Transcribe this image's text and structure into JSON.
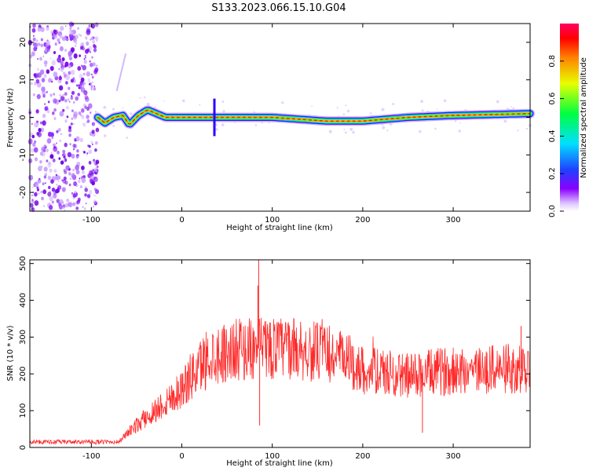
{
  "title": "S133.2023.066.15.10.G04",
  "colors": {
    "trace": "#ff2a2a",
    "line_center": "#ff1a1a"
  },
  "chart_data": [
    {
      "type": "heatmap",
      "xlabel": "Height of straight line (km)",
      "ylabel": "Frequency (Hz)",
      "xlim": [
        -168,
        385
      ],
      "ylim": [
        -25,
        25
      ],
      "xticks": [
        -100,
        0,
        100,
        200,
        300
      ],
      "yticks": [
        -20,
        -10,
        0,
        10,
        20
      ],
      "colorbar": {
        "label": "Normalized spectral amplitude",
        "range": [
          0.0,
          1.0
        ],
        "ticks": [
          "0.0",
          "0.2",
          "0.4",
          "0.6",
          "0.8"
        ],
        "colormap": "rainbow"
      },
      "noise_region_xmax": -93,
      "signal_center_track": [
        [
          -93,
          0
        ],
        [
          -85,
          -1.5
        ],
        [
          -75,
          0
        ],
        [
          -65,
          0.5
        ],
        [
          -58,
          -2
        ],
        [
          -48,
          0.5
        ],
        [
          -38,
          2
        ],
        [
          -28,
          1
        ],
        [
          -18,
          0
        ],
        [
          0,
          0
        ],
        [
          35,
          0
        ],
        [
          100,
          0
        ],
        [
          160,
          -1
        ],
        [
          200,
          -1
        ],
        [
          250,
          0
        ],
        [
          300,
          0.5
        ],
        [
          385,
          1
        ]
      ]
    },
    {
      "type": "line",
      "xlabel": "Height of straight line (km)",
      "ylabel": "SNR (10 * v/v)",
      "xlim": [
        -168,
        385
      ],
      "ylim": [
        0,
        510
      ],
      "xticks": [
        -100,
        0,
        100,
        200,
        300
      ],
      "yticks": [
        0,
        100,
        200,
        300,
        400,
        500
      ],
      "series_envelope": [
        [
          -168,
          15
        ],
        [
          -70,
          15
        ],
        [
          -55,
          50
        ],
        [
          -30,
          100
        ],
        [
          0,
          160
        ],
        [
          30,
          250
        ],
        [
          60,
          265
        ],
        [
          90,
          270
        ],
        [
          120,
          270
        ],
        [
          150,
          260
        ],
        [
          180,
          240
        ],
        [
          200,
          210
        ],
        [
          250,
          195
        ],
        [
          300,
          210
        ],
        [
          385,
          215
        ]
      ],
      "spikes": [
        {
          "x": 85,
          "y": 510
        },
        {
          "x": 84,
          "y": 440
        },
        {
          "x": 86,
          "y": 60
        },
        {
          "x": 266,
          "y": 40
        },
        {
          "x": 375,
          "y": 330
        }
      ]
    }
  ]
}
